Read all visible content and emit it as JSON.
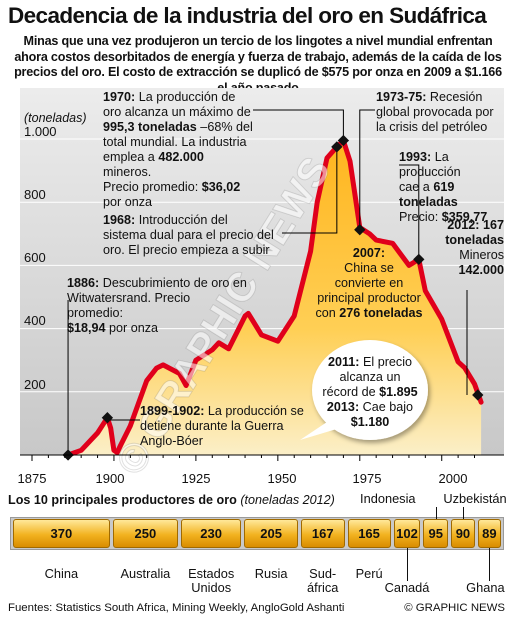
{
  "header": {
    "title": "Decadencia de la industria del oro en Sudáfrica",
    "subtitle": "Minas que una vez produjeron un tercio de los lingotes a nivel mundial enfrentan ahora costos desorbitados de energía y fuerza de trabajo, además de la caída de los precios del oro. El costo de extracción se duplicó de $575 por onza en 2009 a $1.166 el año pasado"
  },
  "chart_data": [
    {
      "type": "area",
      "ylabel": "(toneladas)",
      "ylim": [
        0,
        1050
      ],
      "xlim": [
        1875,
        2014
      ],
      "yticks": [
        {
          "value": 200,
          "label": "200"
        },
        {
          "value": 400,
          "label": "400"
        },
        {
          "value": 600,
          "label": "600"
        },
        {
          "value": 800,
          "label": "800"
        },
        {
          "value": 1000,
          "label": "1.000"
        }
      ],
      "xticks": [
        {
          "value": 1875,
          "label": "1875"
        },
        {
          "value": 1900,
          "label": "1900"
        },
        {
          "value": 1925,
          "label": "1925"
        },
        {
          "value": 1950,
          "label": "1950"
        },
        {
          "value": 1975,
          "label": "1975"
        },
        {
          "value": 2000,
          "label": "2000"
        }
      ],
      "x": [
        1886,
        1890,
        1895,
        1898,
        1899,
        1900,
        1901,
        1902,
        1905,
        1910,
        1913,
        1915,
        1920,
        1922,
        1925,
        1930,
        1932,
        1935,
        1940,
        1941,
        1945,
        1950,
        1955,
        1960,
        1962,
        1965,
        1968,
        1970,
        1972,
        1975,
        1978,
        1980,
        1985,
        1990,
        1993,
        1995,
        2000,
        2005,
        2007,
        2010,
        2012
      ],
      "y": [
        0,
        15,
        70,
        118,
        85,
        15,
        8,
        30,
        92,
        235,
        275,
        285,
        258,
        220,
        300,
        333,
        355,
        336,
        440,
        448,
        380,
        360,
        440,
        645,
        800,
        940,
        975,
        995,
        930,
        720,
        700,
        680,
        670,
        600,
        619,
        520,
        430,
        295,
        276,
        225,
        167
      ],
      "annotations": [
        {
          "year": 1886,
          "value": 0
        },
        {
          "year": 1898,
          "value": 118
        },
        {
          "year": 1968,
          "value": 975
        },
        {
          "year": 1970,
          "value": 995.3
        },
        {
          "year": 1975,
          "value": 713
        },
        {
          "year": 1993,
          "value": 619
        },
        {
          "year": 2007,
          "value": 276
        },
        {
          "year": 2011,
          "value": 190
        }
      ]
    },
    {
      "type": "bar",
      "title": "Los 10 principales productores de oro",
      "unit_note": "(toneladas 2012)",
      "categories": [
        "China",
        "Australia",
        "Estados Unidos",
        "Rusia",
        "Sudáfrica",
        "Perú",
        "Canadá",
        "Indonesia",
        "Uzbekistán",
        "Ghana"
      ],
      "values": [
        370,
        250,
        230,
        205,
        167,
        165,
        102,
        95,
        90,
        89
      ]
    }
  ],
  "notes": {
    "n1970": {
      "l1": "1970:",
      "l1b": " La producción de",
      "l2": "oro alcanza un máximo de",
      "l3b": "995,3 toneladas",
      "l3": " –68% del",
      "l4": "total mundial. La industria",
      "l5": "emplea a ",
      "l5b": "482.000",
      "l5c": " mineros.",
      "l6": "Precio promedio: ",
      "l6b": "$36,02",
      "l7": "por onza"
    },
    "n1968": {
      "l1": "1968:",
      "l1b": " Introducción del",
      "l2": "sistema dual para el precio del",
      "l3": "oro. El precio empieza a subir"
    },
    "n1886": {
      "l1": "1886:",
      "l1b": " Descubrimiento de oro en",
      "l2": "Witwatersrand. Precio promedio:",
      "l3b": "$18,94",
      "l3": " por onza"
    },
    "n1899": {
      "l1": "1899-1902:",
      "l1b": " La producción se",
      "l2": "detiene durante la Guerra",
      "l3": "Anglo-Bóer"
    },
    "n1973": {
      "l1": "1973-75:",
      "l1b": " Recesión",
      "l2": "global provocada por",
      "l3": "la crisis del petróleo"
    },
    "n1993": {
      "l1": "1993:",
      "l1b": " La producción",
      "l2": "cae a ",
      "l2b": "619 toneladas",
      "l3": "Precio: ",
      "l3b": "$359,77"
    },
    "n2012": {
      "l1": "2012: 167",
      "l2": "toneladas",
      "l3": "Mineros",
      "l4": "142.000"
    },
    "n2007": {
      "l1": "2007:",
      "l2": "China se",
      "l3": "convierte en",
      "l4": "principal productor",
      "l5": "con ",
      "l5b": "276 toneladas"
    },
    "n2011": {
      "l1": "2011:",
      "l1b": " El precio",
      "l2": "alcanza un",
      "l3": "récord de ",
      "l3b": "$1.895",
      "l4b": "2013:",
      "l4": " Cae bajo",
      "l5b": "$1.180"
    }
  },
  "watermark": "© GRAPHIC NEWS",
  "footer": {
    "sources": "Fuentes: Statistics South Africa, Mining Weekly, AngloGold Ashanti",
    "credit": "© GRAPHIC NEWS"
  },
  "colors": {
    "line": "#e0001b",
    "area_top": "#ffbf2a",
    "area_bottom": "#f6e2a8",
    "plot_bg": "#d8d8d8"
  }
}
